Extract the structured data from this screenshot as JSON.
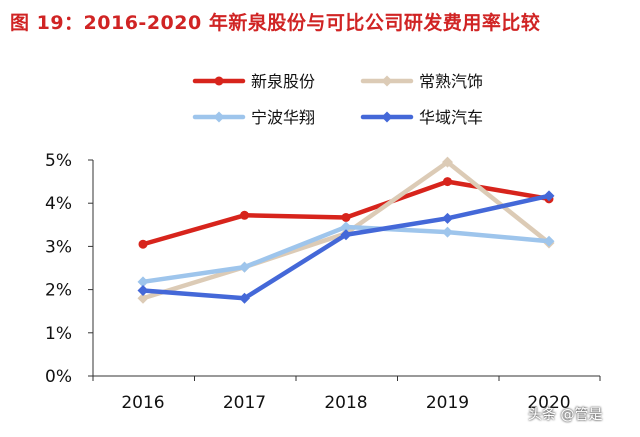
{
  "chart_data": {
    "type": "line",
    "title": "图 19：2016-2020 年新泉股份与可比公司研发费用率比较",
    "xlabel": "",
    "ylabel": "",
    "x": [
      "2016",
      "2017",
      "2018",
      "2019",
      "2020"
    ],
    "ylim": [
      0,
      5
    ],
    "yticks": [
      "0%",
      "1%",
      "2%",
      "3%",
      "4%",
      "5%"
    ],
    "grid": false,
    "legend_position": "top",
    "series": [
      {
        "name": "新泉股份",
        "color": "#d7241c",
        "marker": "circle",
        "values": [
          3.05,
          3.72,
          3.67,
          4.5,
          4.1
        ]
      },
      {
        "name": "常熟汽饰",
        "color": "#dccbb6",
        "marker": "diamond",
        "values": [
          1.8,
          2.52,
          3.3,
          4.95,
          3.08
        ]
      },
      {
        "name": "宁波华翔",
        "color": "#9ec5ec",
        "marker": "diamond",
        "values": [
          2.18,
          2.52,
          3.45,
          3.33,
          3.12
        ]
      },
      {
        "name": "华域汽车",
        "color": "#4468d8",
        "marker": "diamond",
        "values": [
          1.98,
          1.8,
          3.27,
          3.65,
          4.17
        ]
      }
    ]
  },
  "watermark": "头条 @管是"
}
